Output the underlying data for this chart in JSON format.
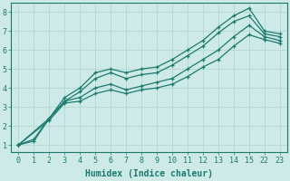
{
  "xlabel": "Humidex (Indice chaleur)",
  "background_color": "#ceeae6",
  "grid_color": "#aed4cf",
  "line_color": "#1a7a6e",
  "tick_color": "#1a7a6e",
  "spine_color": "#1a7a6e",
  "xtick_labels": [
    "0",
    "1",
    "2",
    "3",
    "4",
    "5",
    "6",
    "7",
    "8",
    "9",
    "10",
    "11",
    "12",
    "13",
    "14",
    "15",
    "22",
    "23"
  ],
  "xtick_positions": [
    0,
    1,
    2,
    3,
    4,
    5,
    6,
    7,
    8,
    9,
    10,
    11,
    12,
    13,
    14,
    15,
    16,
    17
  ],
  "xlim": [
    -0.5,
    17.5
  ],
  "yticks": [
    1,
    2,
    3,
    4,
    5,
    6,
    7,
    8
  ],
  "ylim": [
    0.6,
    8.5
  ],
  "lines": [
    {
      "x": [
        0,
        1,
        2,
        3,
        4,
        5,
        6,
        7,
        8,
        9,
        10,
        11,
        12,
        13,
        14,
        15,
        16,
        17
      ],
      "y": [
        1.0,
        1.3,
        2.4,
        3.5,
        4.0,
        4.8,
        5.0,
        4.8,
        5.0,
        5.1,
        5.5,
        6.0,
        6.5,
        7.2,
        7.8,
        8.2,
        7.0,
        6.85
      ]
    },
    {
      "x": [
        0,
        1,
        2,
        3,
        4,
        5,
        6,
        7,
        8,
        9,
        10,
        11,
        12,
        13,
        14,
        15,
        16,
        17
      ],
      "y": [
        1.0,
        1.2,
        2.4,
        3.3,
        3.8,
        4.5,
        4.8,
        4.5,
        4.7,
        4.8,
        5.2,
        5.7,
        6.2,
        6.9,
        7.5,
        7.8,
        6.85,
        6.7
      ]
    },
    {
      "x": [
        0,
        2,
        3,
        4,
        5,
        6,
        7,
        8,
        9,
        10,
        11,
        12,
        13,
        14,
        15,
        16,
        17
      ],
      "y": [
        1.0,
        2.4,
        3.3,
        3.5,
        4.0,
        4.2,
        3.9,
        4.1,
        4.3,
        4.5,
        5.0,
        5.5,
        6.0,
        6.7,
        7.3,
        6.7,
        6.5
      ]
    },
    {
      "x": [
        0,
        2,
        3,
        4,
        5,
        6,
        7,
        8,
        9,
        10,
        11,
        12,
        13,
        14,
        15,
        16,
        17
      ],
      "y": [
        1.0,
        2.3,
        3.2,
        3.3,
        3.7,
        3.9,
        3.7,
        3.9,
        4.0,
        4.2,
        4.6,
        5.1,
        5.5,
        6.2,
        6.8,
        6.55,
        6.35
      ]
    }
  ],
  "linewidth": 0.9,
  "markersize": 3.5,
  "xlabel_fontsize": 7,
  "tick_fontsize": 6
}
